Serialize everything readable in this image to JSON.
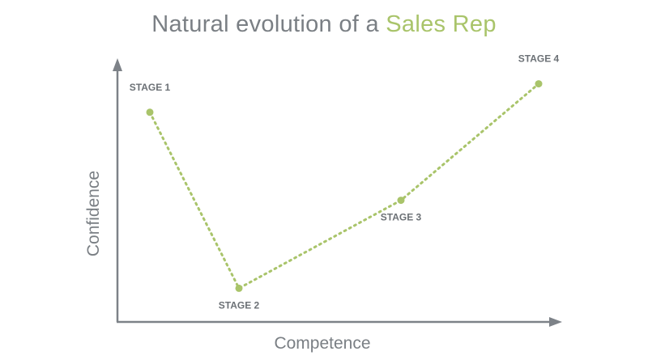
{
  "title": {
    "prefix": "Natural evolution of a ",
    "highlight": "Sales Rep"
  },
  "colors": {
    "accent": "#a9c46a",
    "axis": "#7d8288",
    "text": "#7a7f84"
  },
  "chart_data": {
    "type": "line",
    "title": "Natural evolution of a Sales Rep",
    "xlabel": "Competence",
    "ylabel": "Confidence",
    "xlim": [
      0,
      10
    ],
    "ylim": [
      0,
      10
    ],
    "grid": false,
    "x": [
      0.8,
      3.0,
      7.0,
      10.4
    ],
    "y": [
      8.1,
      1.3,
      4.7,
      9.2
    ],
    "point_labels": [
      "STAGE 1",
      "STAGE 2",
      "STAGE 3",
      "STAGE 4"
    ],
    "label_positions": [
      "above",
      "below",
      "below",
      "above"
    ]
  }
}
